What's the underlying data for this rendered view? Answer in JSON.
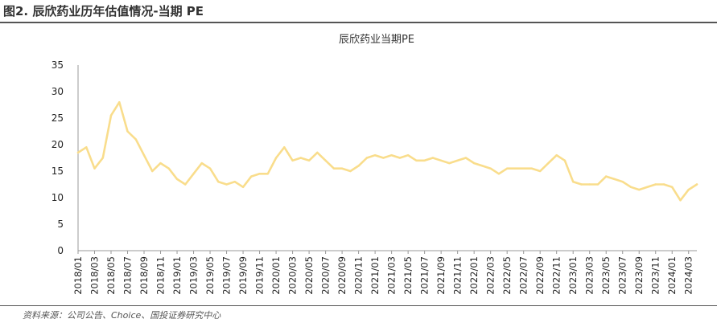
{
  "figure": {
    "title": "图2. 辰欣药业历年估值情况-当期 PE",
    "source": "资料来源：公司公告、Choice、国投证券研究中心"
  },
  "chart_data": {
    "type": "line",
    "title": "辰欣药业当期PE",
    "xlabel": "",
    "ylabel": "",
    "ylim": [
      0,
      35
    ],
    "yticks": [
      "0",
      "5",
      "10",
      "15",
      "20",
      "25",
      "30",
      "35"
    ],
    "xticks": [
      "2018/01",
      "2018/03",
      "2018/05",
      "2018/07",
      "2018/09",
      "2018/11",
      "2019/01",
      "2019/03",
      "2019/05",
      "2019/07",
      "2019/09",
      "2019/11",
      "2020/01",
      "2020/03",
      "2020/05",
      "2020/07",
      "2020/09",
      "2020/11",
      "2021/01",
      "2021/03",
      "2021/05",
      "2021/07",
      "2021/09",
      "2021/11",
      "2022/01",
      "2022/03",
      "2022/05",
      "2022/07",
      "2022/09",
      "2022/11",
      "2023/01",
      "2023/03",
      "2023/05",
      "2023/07",
      "2023/09",
      "2023/11",
      "2024/01",
      "2024/03"
    ],
    "x_start": "2018/01",
    "x_end": "2024/04",
    "grid": false,
    "series_color": "#f9dd8c",
    "series": [
      {
        "x": [
          "2018/01",
          "2018/02",
          "2018/03",
          "2018/04",
          "2018/05",
          "2018/06",
          "2018/07",
          "2018/08",
          "2018/09",
          "2018/10",
          "2018/11",
          "2018/12",
          "2019/01",
          "2019/02",
          "2019/03",
          "2019/04",
          "2019/05",
          "2019/06",
          "2019/07",
          "2019/08",
          "2019/09",
          "2019/10",
          "2019/11",
          "2019/12",
          "2020/01",
          "2020/02",
          "2020/03",
          "2020/04",
          "2020/05",
          "2020/06",
          "2020/07",
          "2020/08",
          "2020/09",
          "2020/10",
          "2020/11",
          "2020/12",
          "2021/01",
          "2021/02",
          "2021/03",
          "2021/04",
          "2021/05",
          "2021/06",
          "2021/07",
          "2021/08",
          "2021/09",
          "2021/10",
          "2021/11",
          "2021/12",
          "2022/01",
          "2022/02",
          "2022/03",
          "2022/04",
          "2022/05",
          "2022/06",
          "2022/07",
          "2022/08",
          "2022/09",
          "2022/10",
          "2022/11",
          "2022/12",
          "2023/01",
          "2023/02",
          "2023/03",
          "2023/04",
          "2023/05",
          "2023/06",
          "2023/07",
          "2023/08",
          "2023/09",
          "2023/10",
          "2023/11",
          "2023/12",
          "2024/01",
          "2024/02",
          "2024/03",
          "2024/04"
        ],
        "y": [
          18.5,
          19.5,
          15.5,
          17.5,
          25.5,
          28.0,
          22.5,
          21.0,
          18.0,
          15.0,
          16.5,
          15.5,
          13.5,
          12.5,
          14.5,
          16.5,
          15.5,
          13.0,
          12.5,
          13.0,
          12.0,
          14.0,
          14.5,
          14.5,
          17.5,
          19.5,
          17.0,
          17.5,
          17.0,
          18.5,
          17.0,
          15.5,
          15.5,
          15.0,
          16.0,
          17.5,
          18.0,
          17.5,
          18.0,
          17.5,
          18.0,
          17.0,
          17.0,
          17.5,
          17.0,
          16.5,
          17.0,
          17.5,
          16.5,
          16.0,
          15.5,
          14.5,
          15.5,
          15.5,
          15.5,
          15.5,
          15.0,
          16.5,
          18.0,
          17.0,
          13.0,
          12.5,
          12.5,
          12.5,
          14.0,
          13.5,
          13.0,
          12.0,
          11.5,
          12.0,
          12.5,
          12.5,
          12.0,
          9.5,
          11.5,
          12.5
        ]
      }
    ]
  }
}
